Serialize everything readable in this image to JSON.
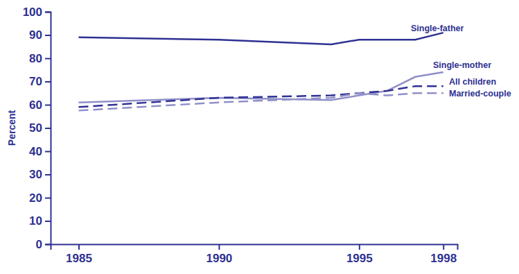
{
  "chart_data": {
    "type": "line",
    "y_label": "Percent",
    "x": [
      1985,
      1990,
      1994,
      1995,
      1996,
      1997,
      1998
    ],
    "xlim": [
      1984,
      1998.5
    ],
    "xticks": [
      1985,
      1990,
      1995,
      1998
    ],
    "ylim": [
      0,
      100
    ],
    "yticks": [
      0,
      10,
      20,
      30,
      40,
      50,
      60,
      70,
      80,
      90,
      100
    ],
    "grid": false,
    "series": [
      {
        "name": "Single-father",
        "color": "#2e3192",
        "line_style": "solid",
        "values": [
          89,
          88,
          86,
          88,
          88,
          88,
          91
        ]
      },
      {
        "name": "Single-mother",
        "color": "#8f8fc9",
        "line_style": "solid",
        "values": [
          61,
          63,
          62,
          64,
          66,
          72,
          74
        ]
      },
      {
        "name": "All children",
        "color": "#2e3192",
        "line_style": "dashed",
        "values": [
          59,
          63,
          64,
          65,
          66,
          68,
          68
        ]
      },
      {
        "name": "Married-couple",
        "color": "#8f8fc9",
        "line_style": "dashed",
        "values": [
          57.5,
          61,
          63,
          65,
          64,
          65,
          65
        ]
      }
    ]
  }
}
